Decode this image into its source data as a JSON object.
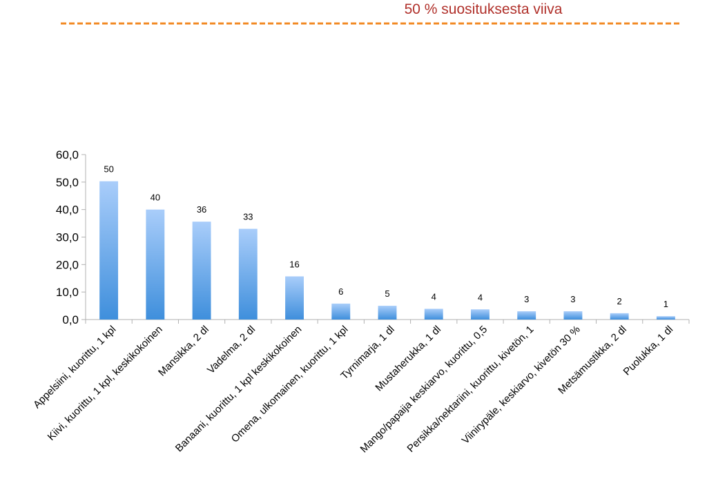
{
  "reference_line": {
    "label": "50 % suosituksesta viiva",
    "color": "#f28a24",
    "label_color": "#b0302a"
  },
  "chart_data": {
    "type": "bar",
    "categories": [
      "Appelsiini, kuorittu, 1 kpl",
      "Kiivi, kuorittu, 1 kpl, keskikokoinen",
      "Mansikka, 2 dl",
      "Vadelma, 2 dl",
      "Banaani, kuorittu, 1 kpl keskikokoinen",
      "Omena, ulkomainen, kuorittu, 1 kpl",
      "Tyrnimarja, 1 dl",
      "Mustaherukka, 1 dl",
      "Mango/papaija keskiarvo, kuorittu, 0,5",
      "Persikka/nektariini, kuorittu, kivetön, 1",
      "Viinirypäle, keskiarvo, kivetön 30 %",
      "Metsämustikka, 2 dl",
      "Puolukka, 1 dl"
    ],
    "values": [
      50.3,
      40.0,
      35.6,
      33.0,
      15.7,
      5.8,
      5.0,
      3.9,
      3.7,
      3.0,
      3.0,
      2.3,
      1.2
    ],
    "data_labels": [
      "50",
      "40",
      "36",
      "33",
      "16",
      "6",
      "5",
      "4",
      "4",
      "3",
      "3",
      "2",
      "1"
    ],
    "ylim": [
      0,
      60
    ],
    "yticks": [
      "0,0",
      "10,0",
      "20,0",
      "30,0",
      "40,0",
      "50,0",
      "60,0"
    ],
    "bar_color_top": "#a9cdfa",
    "bar_color_bottom": "#3f8fdc",
    "grid": false,
    "legend": "none"
  }
}
